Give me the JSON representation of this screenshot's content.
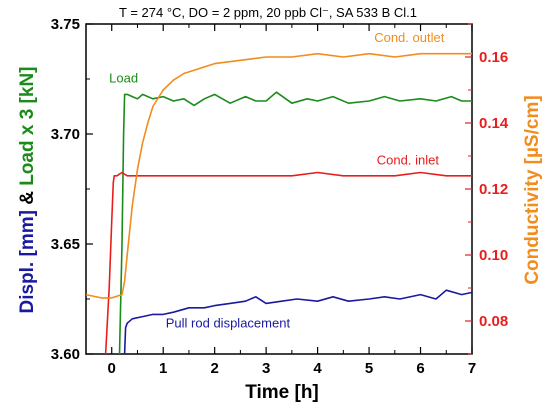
{
  "chart_data": {
    "type": "line",
    "title": "T = 274 °C, DO = 2 ppm, 20 ppb Cl⁻, SA 533 B Cl.1",
    "xlabel": "Time  [h]",
    "ylabel_left": {
      "parts": [
        {
          "text": "Displ. [mm]",
          "color": "#1a1aa0"
        },
        {
          "text": " & ",
          "color": "#000000"
        },
        {
          "text": "Load x 3 [kN]",
          "color": "#1a8c1a"
        }
      ]
    },
    "ylabel_right": {
      "parts": [
        {
          "text": "Conductivity ",
          "color": "#f28c1c"
        },
        {
          "text": "[µS/cm]",
          "color": "#f28c1c"
        }
      ]
    },
    "xlim": [
      -0.5,
      7
    ],
    "ylim_left": [
      3.6,
      3.75
    ],
    "ylim_right": [
      0.07,
      0.17
    ],
    "x_ticks": [
      0,
      1,
      2,
      3,
      4,
      5,
      6,
      7
    ],
    "y_left_ticks": [
      "3.60",
      "3.65",
      "3.70",
      "3.75"
    ],
    "y_right_ticks": [
      "0.08",
      "0.10",
      "0.12",
      "0.14",
      "0.16"
    ],
    "grid": false,
    "series": [
      {
        "name": "Pull rod displacement",
        "axis": "left",
        "color": "#1a1aa0",
        "x": [
          0.25,
          0.27,
          0.3,
          0.4,
          0.6,
          0.8,
          1.0,
          1.2,
          1.5,
          1.8,
          2.0,
          2.3,
          2.6,
          2.8,
          3.0,
          3.3,
          3.6,
          4.0,
          4.3,
          4.6,
          5.0,
          5.3,
          5.6,
          6.0,
          6.3,
          6.5,
          6.8,
          7.0
        ],
        "y": [
          3.6,
          3.612,
          3.614,
          3.616,
          3.617,
          3.618,
          3.618,
          3.619,
          3.621,
          3.621,
          3.622,
          3.623,
          3.624,
          3.626,
          3.623,
          3.624,
          3.625,
          3.624,
          3.626,
          3.624,
          3.625,
          3.626,
          3.625,
          3.627,
          3.625,
          3.629,
          3.627,
          3.628
        ]
      },
      {
        "name": "Load",
        "axis": "left",
        "color": "#1a8c1a",
        "x": [
          0.15,
          0.2,
          0.23,
          0.25,
          0.3,
          0.4,
          0.5,
          0.6,
          0.8,
          1.0,
          1.2,
          1.4,
          1.6,
          1.8,
          2.0,
          2.3,
          2.6,
          2.8,
          3.0,
          3.2,
          3.5,
          3.8,
          4.0,
          4.3,
          4.6,
          5.0,
          5.3,
          5.6,
          6.0,
          6.3,
          6.6,
          6.8,
          7.0
        ],
        "y": [
          3.6,
          3.65,
          3.7,
          3.718,
          3.718,
          3.717,
          3.716,
          3.718,
          3.716,
          3.717,
          3.715,
          3.716,
          3.713,
          3.716,
          3.718,
          3.714,
          3.717,
          3.715,
          3.715,
          3.719,
          3.714,
          3.716,
          3.715,
          3.717,
          3.714,
          3.715,
          3.717,
          3.715,
          3.716,
          3.715,
          3.717,
          3.715,
          3.715
        ]
      },
      {
        "name": "Cond. inlet",
        "axis": "right",
        "color": "#e81e1e",
        "x": [
          -0.12,
          -0.05,
          0.0,
          0.03,
          0.05,
          0.1,
          0.2,
          0.3,
          0.5,
          0.8,
          1.0,
          1.5,
          2.0,
          2.5,
          3.0,
          3.5,
          4.0,
          4.5,
          5.0,
          5.5,
          6.0,
          6.5,
          7.0
        ],
        "y": [
          0.07,
          0.09,
          0.11,
          0.122,
          0.124,
          0.124,
          0.125,
          0.124,
          0.124,
          0.124,
          0.124,
          0.124,
          0.124,
          0.124,
          0.124,
          0.124,
          0.125,
          0.124,
          0.124,
          0.124,
          0.125,
          0.124,
          0.124
        ]
      },
      {
        "name": "Cond. outlet",
        "axis": "right",
        "color": "#f28c1c",
        "x": [
          -0.5,
          -0.2,
          0.0,
          0.2,
          0.25,
          0.3,
          0.4,
          0.5,
          0.6,
          0.7,
          0.8,
          1.0,
          1.2,
          1.4,
          1.6,
          1.8,
          2.0,
          2.5,
          3.0,
          3.5,
          4.0,
          4.5,
          5.0,
          5.5,
          6.0,
          6.5,
          7.0
        ],
        "y": [
          0.088,
          0.087,
          0.087,
          0.088,
          0.092,
          0.1,
          0.115,
          0.126,
          0.134,
          0.14,
          0.145,
          0.15,
          0.153,
          0.155,
          0.156,
          0.157,
          0.158,
          0.159,
          0.16,
          0.16,
          0.161,
          0.16,
          0.161,
          0.16,
          0.161,
          0.161,
          0.161
        ]
      }
    ],
    "annotations": [
      {
        "text": "Load",
        "color": "#1a8c1a",
        "x": -0.05,
        "y": 3.7235,
        "axis": "left"
      },
      {
        "text": "Cond. outlet",
        "color": "#f28c1c",
        "x": 5.1,
        "y": 0.1645,
        "axis": "right"
      },
      {
        "text": "Cond. inlet",
        "color": "#e81e1e",
        "x": 5.15,
        "y": 0.1275,
        "axis": "right"
      },
      {
        "text": "Pull rod displacement",
        "color": "#1a1aa0",
        "x": 1.05,
        "y": 3.612,
        "axis": "left"
      }
    ]
  }
}
